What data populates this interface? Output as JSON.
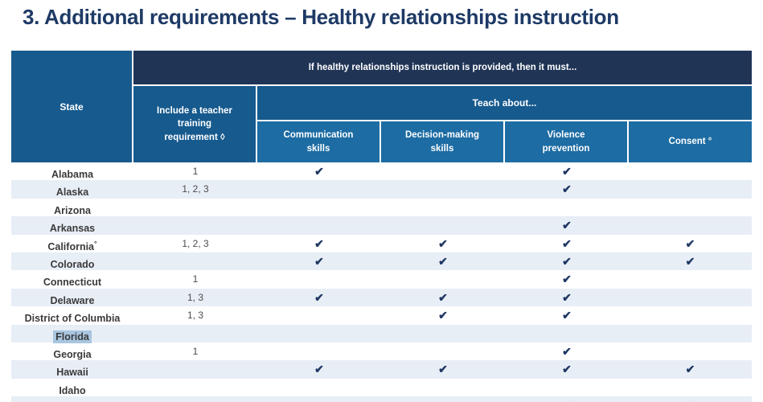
{
  "title": "3. Additional requirements – Healthy relationships instruction",
  "table": {
    "header": {
      "state_label": "State",
      "banner": "If healthy relationships instruction is provided, then it must...",
      "training_label": "Include a teacher training requirement ◊",
      "teach_about": "Teach about...",
      "columns": [
        "Communication skills",
        "Decision-making skills",
        "Violence prevention",
        "Consent °"
      ]
    },
    "check_glyph": "✔",
    "rows": [
      {
        "state": "Alabama",
        "state_sup": "",
        "training": "1",
        "communication": "✔",
        "decision": "",
        "violence": "✔",
        "consent": ""
      },
      {
        "state": "Alaska",
        "state_sup": "",
        "training": "1, 2, 3",
        "communication": "",
        "decision": "",
        "violence": "✔",
        "consent": ""
      },
      {
        "state": "Arizona",
        "state_sup": "",
        "training": "",
        "communication": "",
        "decision": "",
        "violence": "",
        "consent": ""
      },
      {
        "state": "Arkansas",
        "state_sup": "",
        "training": "",
        "communication": "",
        "decision": "",
        "violence": "✔",
        "consent": ""
      },
      {
        "state": "California",
        "state_sup": "°",
        "training": "1, 2, 3",
        "communication": "✔",
        "decision": "✔",
        "violence": "✔",
        "consent": "✔"
      },
      {
        "state": "Colorado",
        "state_sup": "",
        "training": "",
        "communication": "✔",
        "decision": "✔",
        "violence": "✔",
        "consent": "✔"
      },
      {
        "state": "Connecticut",
        "state_sup": "",
        "training": "1",
        "communication": "",
        "decision": "",
        "violence": "✔",
        "consent": ""
      },
      {
        "state": "Delaware",
        "state_sup": "",
        "training": "1, 3",
        "communication": "✔",
        "decision": "✔",
        "violence": "✔",
        "consent": ""
      },
      {
        "state": "District of Columbia",
        "state_sup": "",
        "training": "1, 3",
        "communication": "",
        "decision": "✔",
        "violence": "✔",
        "consent": ""
      },
      {
        "state": "Florida",
        "state_sup": "",
        "training": "",
        "communication": "",
        "decision": "",
        "violence": "",
        "consent": "",
        "highlighted": true
      },
      {
        "state": "Georgia",
        "state_sup": "",
        "training": "1",
        "communication": "",
        "decision": "",
        "violence": "✔",
        "consent": ""
      },
      {
        "state": "Hawaii",
        "state_sup": "",
        "training": "",
        "communication": "✔",
        "decision": "✔",
        "violence": "✔",
        "consent": "✔"
      },
      {
        "state": "Idaho",
        "state_sup": "",
        "training": "",
        "communication": "",
        "decision": "",
        "violence": "",
        "consent": ""
      },
      {
        "state": "",
        "state_sup": "",
        "training": "",
        "communication": "",
        "decision": "",
        "violence": "✔",
        "consent": "✔",
        "partial": true
      }
    ]
  },
  "colors": {
    "title": "#1e3a66",
    "navy": "#203456",
    "mid": "#175a8e",
    "sub": "#1d6ca3",
    "altrow": "#e8eef6",
    "check": "#1f3864",
    "highlight": "#a9c6e1"
  }
}
